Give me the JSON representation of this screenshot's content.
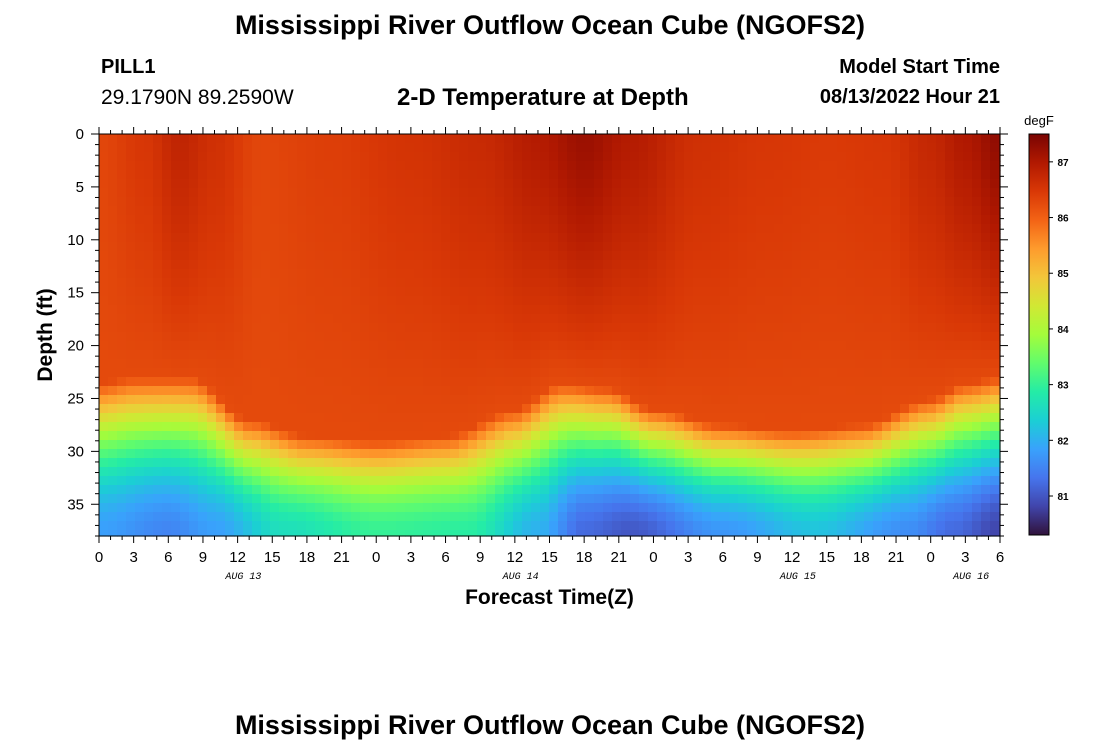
{
  "header": {
    "title": "Mississippi River Outflow Ocean Cube (NGOFS2)",
    "station": "PILL1",
    "coordinates": "29.1790N  89.2590W",
    "subtitle": "2-D Temperature at Depth",
    "model_start_label": "Model Start Time",
    "model_start_value": "08/13/2022 Hour 21"
  },
  "footer": {
    "title": "Mississippi River Outflow Ocean Cube (NGOFS2)"
  },
  "chart_data": {
    "type": "heatmap",
    "xlabel": "Forecast Time(Z)",
    "ylabel": "Depth (ft)",
    "x_range_hours": [
      0,
      78
    ],
    "x_tick_labels": [
      "0",
      "3",
      "6",
      "9",
      "12",
      "15",
      "18",
      "21",
      "0",
      "3",
      "6",
      "9",
      "12",
      "15",
      "18",
      "21",
      "0",
      "3",
      "6",
      "9",
      "12",
      "15",
      "18",
      "21",
      "0",
      "3",
      "6"
    ],
    "date_labels": [
      {
        "label": "AUG 13",
        "hour": 12.5
      },
      {
        "label": "AUG 14",
        "hour": 36.5
      },
      {
        "label": "AUG 15",
        "hour": 60.5
      },
      {
        "label": "AUG 16",
        "hour": 75.5
      }
    ],
    "y_range": [
      0,
      38
    ],
    "y_ticks": [
      0,
      5,
      10,
      15,
      20,
      25,
      30,
      35
    ],
    "y_inverted": true,
    "colorbar": {
      "unit": "degF",
      "range": [
        80.3,
        87.5
      ],
      "ticks": [
        81,
        82,
        83,
        84,
        85,
        86,
        87
      ],
      "colormap": [
        "#30123b",
        "#4145ab",
        "#4675ed",
        "#39a2fc",
        "#1bcfd4",
        "#24eca6",
        "#61fc6c",
        "#a4fc3b",
        "#d1e834",
        "#f3c63a",
        "#fe9b2d",
        "#f36315",
        "#d93806",
        "#b11901",
        "#7a0402"
      ]
    },
    "surface_temp_profile": {
      "hours": [
        0,
        4,
        7,
        10,
        14,
        20,
        27,
        33,
        38,
        42,
        46,
        52,
        58,
        63,
        68,
        72,
        75,
        78
      ],
      "temp_degF": [
        86.3,
        86.5,
        86.8,
        86.6,
        86.3,
        86.4,
        86.55,
        86.7,
        86.95,
        87.2,
        86.95,
        86.6,
        86.5,
        86.45,
        86.5,
        86.75,
        87.0,
        87.3
      ]
    },
    "mixed_layer_depth_ft": {
      "hours": [
        0,
        3,
        8,
        13,
        18,
        24,
        30,
        36,
        40,
        44,
        48,
        54,
        60,
        66,
        72,
        75,
        78
      ],
      "depth": [
        23.5,
        23,
        23,
        27,
        28.5,
        29,
        28.5,
        26,
        23.5,
        24,
        26,
        27.5,
        28,
        27.5,
        25,
        23.5,
        23
      ]
    },
    "bottom_temp_profile": {
      "hours": [
        0,
        6,
        10,
        16,
        24,
        32,
        38,
        42,
        46,
        54,
        62,
        70,
        74,
        78
      ],
      "temp_degF": [
        81.8,
        81.5,
        81.8,
        82.6,
        83.0,
        82.9,
        82.0,
        81.2,
        81.0,
        81.7,
        82.2,
        81.6,
        81.2,
        80.8
      ]
    }
  }
}
